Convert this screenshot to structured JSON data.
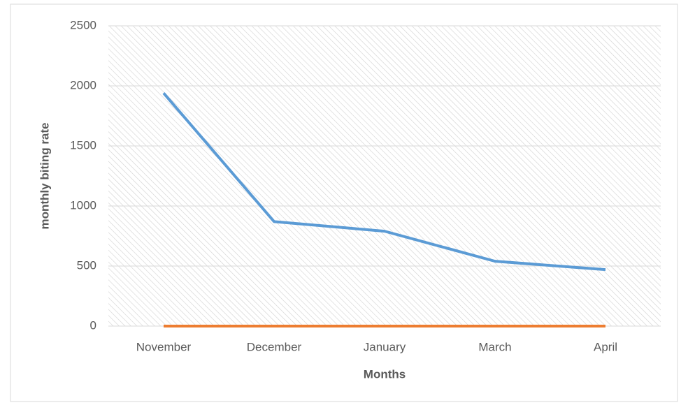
{
  "chart_data": {
    "type": "line",
    "x_label": "Months",
    "y_label": "monthly biting rate",
    "categories": [
      "November",
      "December",
      "January",
      "March",
      "April"
    ],
    "series": [
      {
        "color": "#5b9bd5",
        "values": [
          1940,
          870,
          790,
          540,
          470
        ]
      },
      {
        "color": "#ed7d31",
        "values": [
          0,
          0,
          0,
          0,
          0
        ]
      }
    ],
    "ylim": [
      0,
      2500
    ],
    "yticks": [
      0,
      500,
      1000,
      1500,
      2000,
      2500
    ],
    "grid": true
  }
}
